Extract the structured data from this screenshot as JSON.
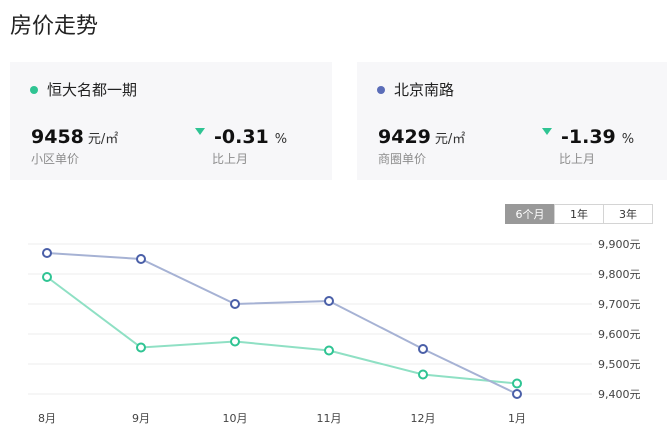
{
  "page": {
    "title": "房价走势"
  },
  "cards": [
    {
      "name": "恒大名都一期",
      "color": "#2fc493",
      "price": "9458",
      "price_unit": "元/㎡",
      "price_label": "小区单价",
      "change": "-0.31",
      "change_unit": "%",
      "change_label": "比上月"
    },
    {
      "name": "北京南路",
      "color": "#5b6db8",
      "price": "9429",
      "price_unit": "元/㎡",
      "price_label": "商圈单价",
      "change": "-1.39",
      "change_unit": "%",
      "change_label": "比上月"
    }
  ],
  "range_tabs": {
    "items": [
      "6个月",
      "1年",
      "3年"
    ],
    "active_index": 0
  },
  "chart_data": {
    "type": "line",
    "categories": [
      "8月",
      "9月",
      "10月",
      "11月",
      "12月",
      "1月"
    ],
    "series": [
      {
        "name": "恒大名都一期",
        "color": "#2fc493",
        "line_color": "#8fe0c4",
        "values": [
          9790,
          9555,
          9575,
          9545,
          9465,
          9435
        ]
      },
      {
        "name": "北京南路",
        "color": "#4a5fa8",
        "line_color": "#a6b2d4",
        "values": [
          9870,
          9850,
          9700,
          9710,
          9550,
          9400
        ]
      }
    ],
    "y_ticks": [
      "9,900元",
      "9,800元",
      "9,700元",
      "9,600元",
      "9,500元",
      "9,400元"
    ],
    "y_tick_values": [
      9900,
      9800,
      9700,
      9600,
      9500,
      9400
    ],
    "ylim": [
      9400,
      9900
    ],
    "grid": true
  }
}
